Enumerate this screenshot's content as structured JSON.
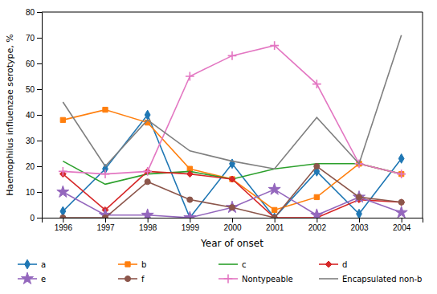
{
  "chart_data": {
    "type": "line",
    "xlabel": "Year of onset",
    "ylabel": "Haemophilus influenzae serotype, %",
    "x": [
      1996,
      1997,
      1998,
      1999,
      2000,
      2001,
      2002,
      2003,
      2004
    ],
    "xlim": [
      1995.5,
      2004.5
    ],
    "xticks": [
      1996,
      1997,
      1998,
      1999,
      2000,
      2001,
      2002,
      2003,
      2004
    ],
    "ylim": [
      0,
      80
    ],
    "yticks": [
      0,
      10,
      20,
      30,
      40,
      50,
      60,
      70,
      80
    ],
    "grid": false,
    "legend": "bottom",
    "series": [
      {
        "name": "a",
        "marker": "diamond",
        "values": [
          2.5,
          19,
          40,
          0,
          21,
          0,
          18,
          1.5,
          23
        ]
      },
      {
        "name": "b",
        "marker": "square",
        "values": [
          38,
          42,
          37,
          19,
          15,
          3,
          8,
          21,
          17
        ]
      },
      {
        "name": "c",
        "values": [
          22,
          13,
          17,
          18,
          15,
          19,
          21,
          21,
          17
        ]
      },
      {
        "name": "d",
        "marker": "thin_diamond",
        "values": [
          17,
          3,
          18,
          17,
          15,
          0,
          0,
          7,
          6
        ]
      },
      {
        "name": "e",
        "marker": "star",
        "values": [
          10,
          1,
          1,
          0,
          4,
          11,
          1,
          8,
          2
        ]
      },
      {
        "name": "f",
        "marker": "circle",
        "values": [
          0,
          0,
          14,
          7,
          4,
          0,
          20,
          8,
          6
        ]
      },
      {
        "name": "Nontypeable",
        "marker": "plus",
        "values": [
          18,
          17,
          18,
          55,
          63,
          67,
          52,
          21,
          17
        ]
      },
      {
        "name": "Encapsulated non-b",
        "values": [
          45,
          20,
          38,
          26,
          22,
          19,
          39,
          21,
          71
        ]
      }
    ]
  }
}
